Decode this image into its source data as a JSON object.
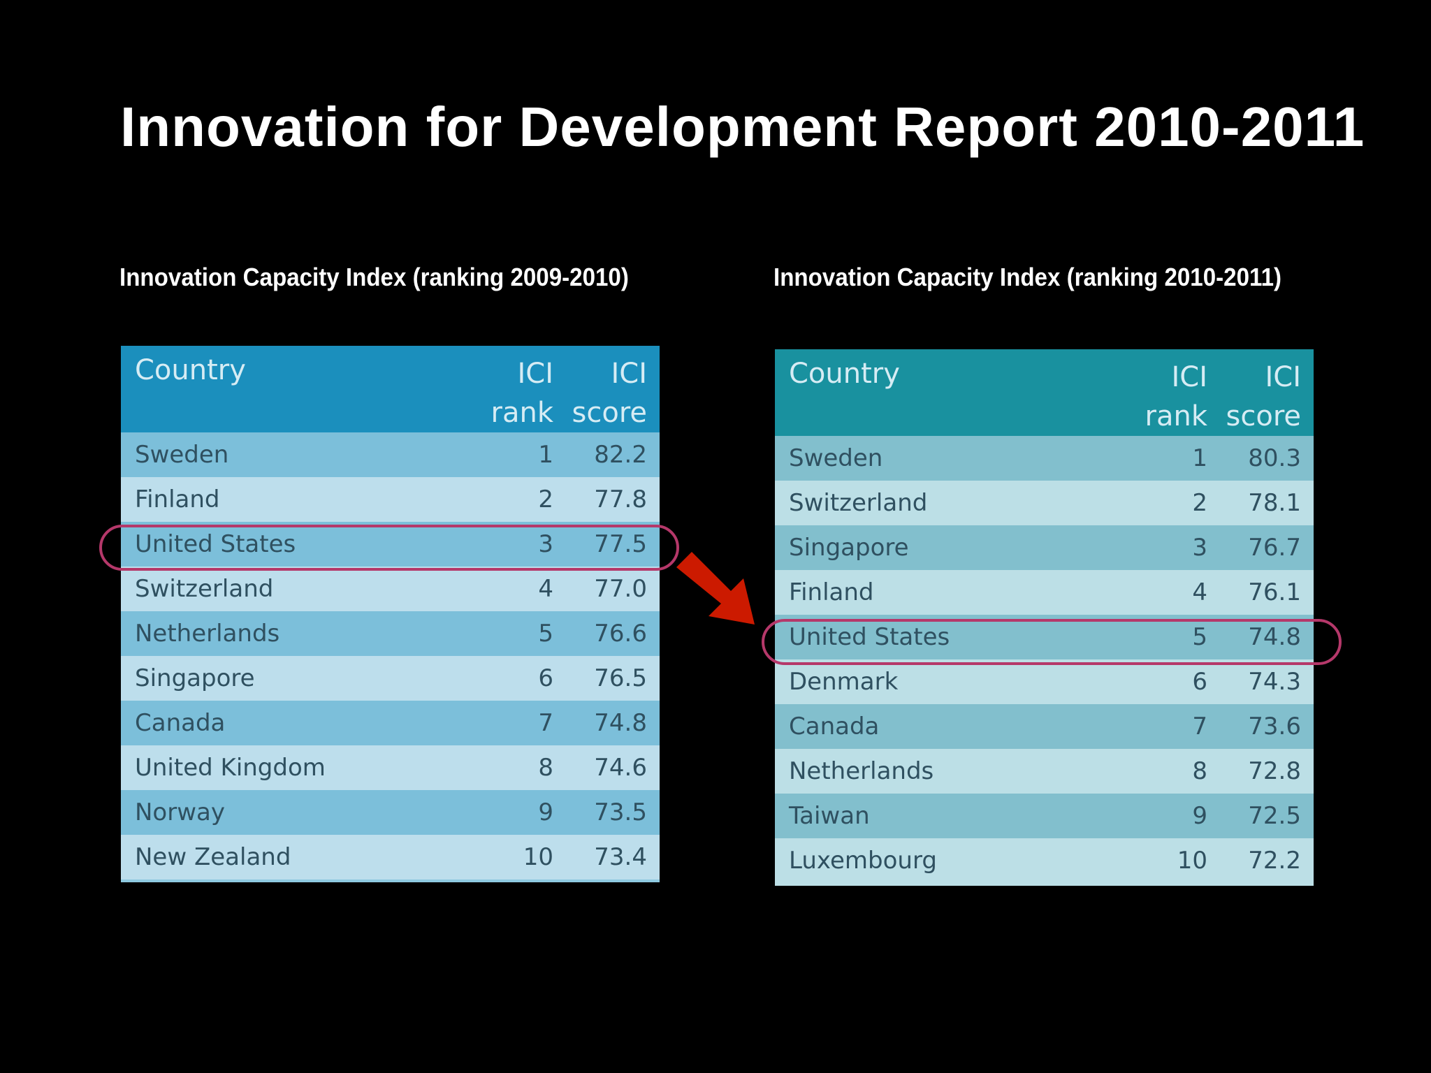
{
  "slide": {
    "title": "Innovation for Development Report 2010-2011"
  },
  "left_panel": {
    "caption": "Innovation Capacity Index (ranking 2009-2010)",
    "header": {
      "country": "Country",
      "rank_line1": "ICI",
      "rank_line2": "rank",
      "score_line1": "ICI",
      "score_line2": "score"
    },
    "rows": [
      {
        "country": "Sweden",
        "rank": "1",
        "score": "82.2"
      },
      {
        "country": "Finland",
        "rank": "2",
        "score": "77.8"
      },
      {
        "country": "United States",
        "rank": "3",
        "score": "77.5"
      },
      {
        "country": "Switzerland",
        "rank": "4",
        "score": "77.0"
      },
      {
        "country": "Netherlands",
        "rank": "5",
        "score": "76.6"
      },
      {
        "country": "Singapore",
        "rank": "6",
        "score": "76.5"
      },
      {
        "country": "Canada",
        "rank": "7",
        "score": "74.8"
      },
      {
        "country": "United Kingdom",
        "rank": "8",
        "score": "74.6"
      },
      {
        "country": "Norway",
        "rank": "9",
        "score": "73.5"
      },
      {
        "country": "New Zealand",
        "rank": "10",
        "score": "73.4"
      }
    ]
  },
  "right_panel": {
    "caption": "Innovation Capacity Index (ranking 2010-2011)",
    "header": {
      "country": "Country",
      "rank_line1": "ICI",
      "rank_line2": "rank",
      "score_line1": "ICI",
      "score_line2": "score"
    },
    "rows": [
      {
        "country": "Sweden",
        "rank": "1",
        "score": "80.3"
      },
      {
        "country": "Switzerland",
        "rank": "2",
        "score": "78.1"
      },
      {
        "country": "Singapore",
        "rank": "3",
        "score": "76.7"
      },
      {
        "country": "Finland",
        "rank": "4",
        "score": "76.1"
      },
      {
        "country": "United States",
        "rank": "5",
        "score": "74.8"
      },
      {
        "country": "Denmark",
        "rank": "6",
        "score": "74.3"
      },
      {
        "country": "Canada",
        "rank": "7",
        "score": "73.6"
      },
      {
        "country": "Netherlands",
        "rank": "8",
        "score": "72.8"
      },
      {
        "country": "Taiwan",
        "rank": "9",
        "score": "72.5"
      },
      {
        "country": "Luxembourg",
        "rank": "10",
        "score": "72.2"
      }
    ]
  },
  "colors": {
    "background": "#000000",
    "highlight_ring": "#b5386a",
    "arrow": "#cc1a00"
  },
  "icons": {
    "arrow": "red-diagonal-arrow-icon"
  }
}
